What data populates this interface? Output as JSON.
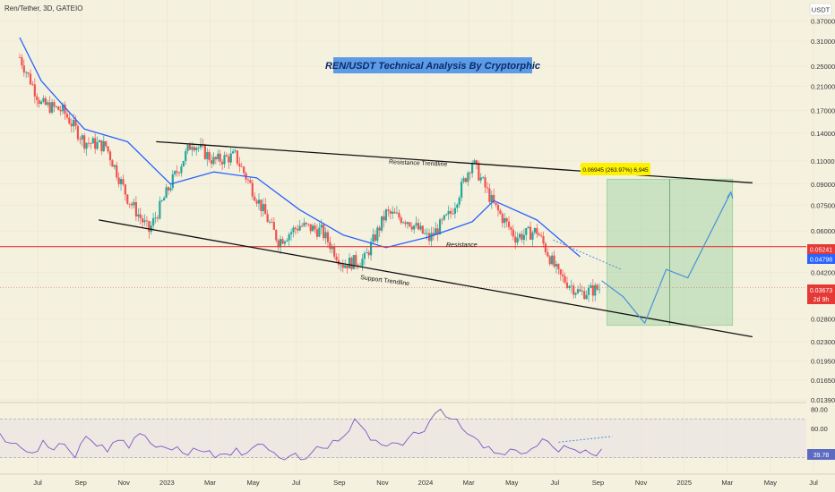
{
  "header": {
    "symbol": "Ren/Tether, 3D, GATEIO",
    "currency": "USDT"
  },
  "headline": "REN/USDT Technical Analysis By Cryptorphic",
  "annotations": {
    "resistance_trendline": "Resistance Trendline",
    "support_trendline": "Support Trendline",
    "resistance": "Resistance",
    "measure": "0.06945 (263.97%) 6,945"
  },
  "price_badges": {
    "resistance": {
      "label": "0.05241",
      "value": 0.05241,
      "color": "#e53935"
    },
    "ema": {
      "label": "0.04798",
      "value": 0.04798,
      "color": "#2962ff"
    },
    "last": {
      "label": "0.03673",
      "sub": "2d 9h",
      "value": 0.03673,
      "color": "#e53935"
    },
    "rsi": {
      "label": "39.78",
      "value": 39.78,
      "color": "#5c6bc0"
    }
  },
  "colors": {
    "background": "#f5f1df",
    "up": "#26a69a",
    "down": "#ef5350",
    "ema": "#2962ff",
    "resistance_line": "#e53935",
    "trendline": "#111111",
    "target_zone": "#a5d6a7",
    "projection": "#4a90d9",
    "rsi": "#7e57c2",
    "headline_bg": "#5c9ce6",
    "measure_bg": "#fff200"
  },
  "chart_data": {
    "type": "candlestick",
    "title": "Ren/Tether, 3D, GATEIO",
    "y_scale": "log",
    "ylim": [
      0.0138,
      0.45
    ],
    "y_ticks": [
      "0.37000",
      "0.31000",
      "0.25000",
      "0.21000",
      "0.17000",
      "0.14000",
      "0.11000",
      "0.09000",
      "0.07500",
      "0.06000",
      "0.04200",
      "0.02800",
      "0.02300",
      "0.01950",
      "0.01650",
      "0.01390"
    ],
    "x_ticks": [
      "Jul",
      "Sep",
      "Nov",
      "2023",
      "Mar",
      "May",
      "Jul",
      "Sep",
      "Nov",
      "2024",
      "Mar",
      "May",
      "Jul",
      "Sep",
      "Nov",
      "2025",
      "Mar",
      "May",
      "Jul"
    ],
    "x_range": [
      "2022-06",
      "2025-07"
    ],
    "price_path": [
      {
        "t": "2022-06",
        "p": 0.27
      },
      {
        "t": "2022-07",
        "p": 0.18
      },
      {
        "t": "2022-08",
        "p": 0.17
      },
      {
        "t": "2022-09",
        "p": 0.13
      },
      {
        "t": "2022-10",
        "p": 0.125
      },
      {
        "t": "2022-11",
        "p": 0.08
      },
      {
        "t": "2022-12",
        "p": 0.06
      },
      {
        "t": "2023-01",
        "p": 0.09
      },
      {
        "t": "2023-02",
        "p": 0.13
      },
      {
        "t": "2023-03",
        "p": 0.11
      },
      {
        "t": "2023-04",
        "p": 0.115
      },
      {
        "t": "2023-05",
        "p": 0.08
      },
      {
        "t": "2023-06",
        "p": 0.055
      },
      {
        "t": "2023-07",
        "p": 0.063
      },
      {
        "t": "2023-08",
        "p": 0.06
      },
      {
        "t": "2023-09",
        "p": 0.045
      },
      {
        "t": "2023-10",
        "p": 0.047
      },
      {
        "t": "2023-11",
        "p": 0.07
      },
      {
        "t": "2023-12",
        "p": 0.066
      },
      {
        "t": "2024-01",
        "p": 0.056
      },
      {
        "t": "2024-02",
        "p": 0.07
      },
      {
        "t": "2024-03",
        "p": 0.11
      },
      {
        "t": "2024-04",
        "p": 0.075
      },
      {
        "t": "2024-05",
        "p": 0.057
      },
      {
        "t": "2024-06",
        "p": 0.06
      },
      {
        "t": "2024-07",
        "p": 0.041
      },
      {
        "t": "2024-08",
        "p": 0.035
      },
      {
        "t": "2024-09",
        "p": 0.0367
      }
    ],
    "ema_path": [
      {
        "t": "2022-06",
        "p": 0.32
      },
      {
        "t": "2022-07",
        "p": 0.22
      },
      {
        "t": "2022-09",
        "p": 0.145
      },
      {
        "t": "2022-11",
        "p": 0.13
      },
      {
        "t": "2023-01",
        "p": 0.09
      },
      {
        "t": "2023-03",
        "p": 0.1
      },
      {
        "t": "2023-05",
        "p": 0.095
      },
      {
        "t": "2023-07",
        "p": 0.072
      },
      {
        "t": "2023-09",
        "p": 0.058
      },
      {
        "t": "2023-11",
        "p": 0.052
      },
      {
        "t": "2024-01",
        "p": 0.057
      },
      {
        "t": "2024-03",
        "p": 0.065
      },
      {
        "t": "2024-04",
        "p": 0.078
      },
      {
        "t": "2024-06",
        "p": 0.066
      },
      {
        "t": "2024-08",
        "p": 0.048
      }
    ],
    "resistance_level": 0.05241,
    "resistance_trendline": [
      {
        "t": "2022-12",
        "p": 0.13
      },
      {
        "t": "2025-04",
        "p": 0.091
      }
    ],
    "support_trendline": [
      {
        "t": "2022-10",
        "p": 0.066
      },
      {
        "t": "2025-04",
        "p": 0.024
      }
    ],
    "target_zone": {
      "t_start": "2024-09",
      "t_end": "2025-03",
      "p_low": 0.0265,
      "p_high": 0.094
    },
    "projection_path": [
      {
        "t": "2024-09",
        "p": 0.039
      },
      {
        "t": "2024-10",
        "p": 0.034
      },
      {
        "t": "2024-11",
        "p": 0.027
      },
      {
        "t": "2024-12",
        "p": 0.043
      },
      {
        "t": "2025-01",
        "p": 0.04
      },
      {
        "t": "2025-03",
        "p": 0.084
      }
    ],
    "rsi": {
      "y_ticks": [
        "80.00",
        "60.00"
      ],
      "levels": [
        70,
        30
      ],
      "ylim": [
        15,
        85
      ],
      "values": [
        55,
        45,
        40,
        35,
        48,
        38,
        44,
        30,
        52,
        42,
        36,
        48,
        40,
        55,
        45,
        42,
        38,
        35,
        40,
        36,
        30,
        34,
        40,
        35,
        44,
        38,
        30,
        32,
        28,
        35,
        40,
        48,
        52,
        70,
        58,
        48,
        42,
        45,
        50,
        55,
        68,
        80,
        70,
        60,
        52,
        40,
        35,
        33,
        38,
        35,
        42,
        47,
        36,
        40,
        35,
        34,
        39
      ]
    }
  }
}
